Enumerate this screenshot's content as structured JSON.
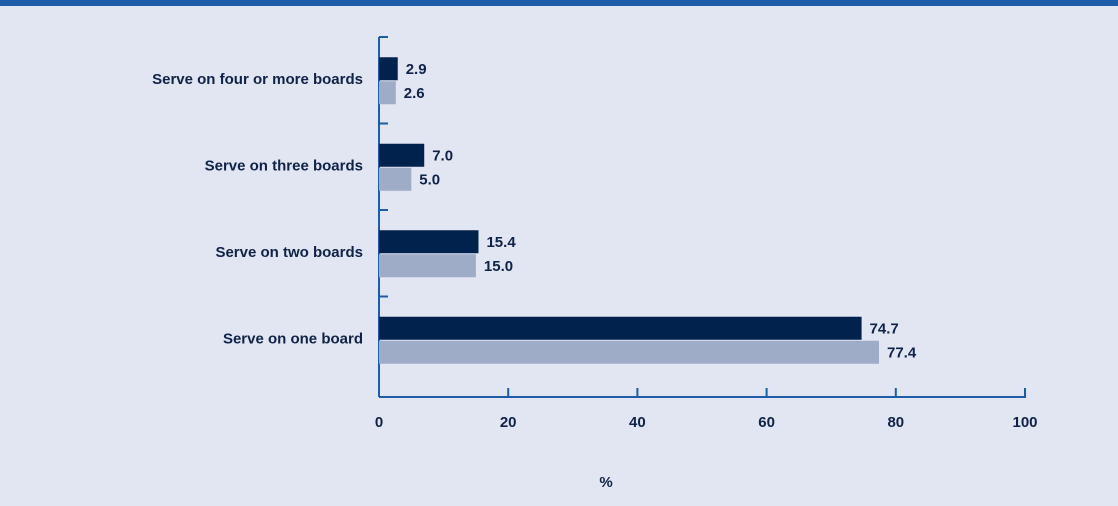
{
  "chart_data": {
    "type": "bar",
    "orientation": "horizontal",
    "categories": [
      "Serve on four or more boards",
      "Serve on three boards",
      "Serve on two boards",
      "Serve on one board"
    ],
    "series": [
      {
        "color": "#00224d",
        "values": [
          2.9,
          7.0,
          15.4,
          74.7
        ],
        "value_labels": [
          "2.9",
          "7.0",
          "15.4",
          "74.7"
        ]
      },
      {
        "color": "#9eacc7",
        "values": [
          2.6,
          5.0,
          15.0,
          77.4
        ],
        "value_labels": [
          "2.6",
          "5.0",
          "15.0",
          "77.4"
        ]
      }
    ],
    "xlabel": "%",
    "xlim": [
      0,
      100
    ],
    "xticks": [
      0,
      20,
      40,
      60,
      80,
      100
    ]
  }
}
